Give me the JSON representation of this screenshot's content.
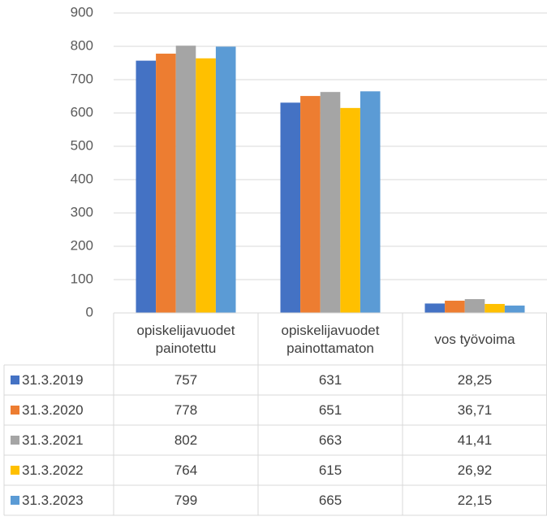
{
  "chart_data": {
    "type": "bar",
    "categories": [
      "opiskelijavuodet painotettu",
      "opiskelijavuodet painottamaton",
      "vos työvoima"
    ],
    "series": [
      {
        "name": "31.3.2019",
        "color": "#4472c4",
        "values": [
          757,
          631,
          28.25
        ],
        "value_labels": [
          "757",
          "631",
          "28,25"
        ]
      },
      {
        "name": "31.3.2020",
        "color": "#ed7d31",
        "values": [
          778,
          651,
          36.71
        ],
        "value_labels": [
          "778",
          "651",
          "36,71"
        ]
      },
      {
        "name": "31.3.2021",
        "color": "#a5a5a5",
        "values": [
          802,
          663,
          41.41
        ],
        "value_labels": [
          "802",
          "663",
          "41,41"
        ]
      },
      {
        "name": "31.3.2022",
        "color": "#ffc000",
        "values": [
          764,
          615,
          26.92
        ],
        "value_labels": [
          "764",
          "615",
          "26,92"
        ]
      },
      {
        "name": "31.3.2023",
        "color": "#5b9bd5",
        "values": [
          799,
          665,
          22.15
        ],
        "value_labels": [
          "799",
          "665",
          "22,15"
        ]
      }
    ],
    "ylim": [
      0,
      900
    ],
    "yticks": [
      0,
      100,
      200,
      300,
      400,
      500,
      600,
      700,
      800,
      900
    ],
    "grid": true
  }
}
